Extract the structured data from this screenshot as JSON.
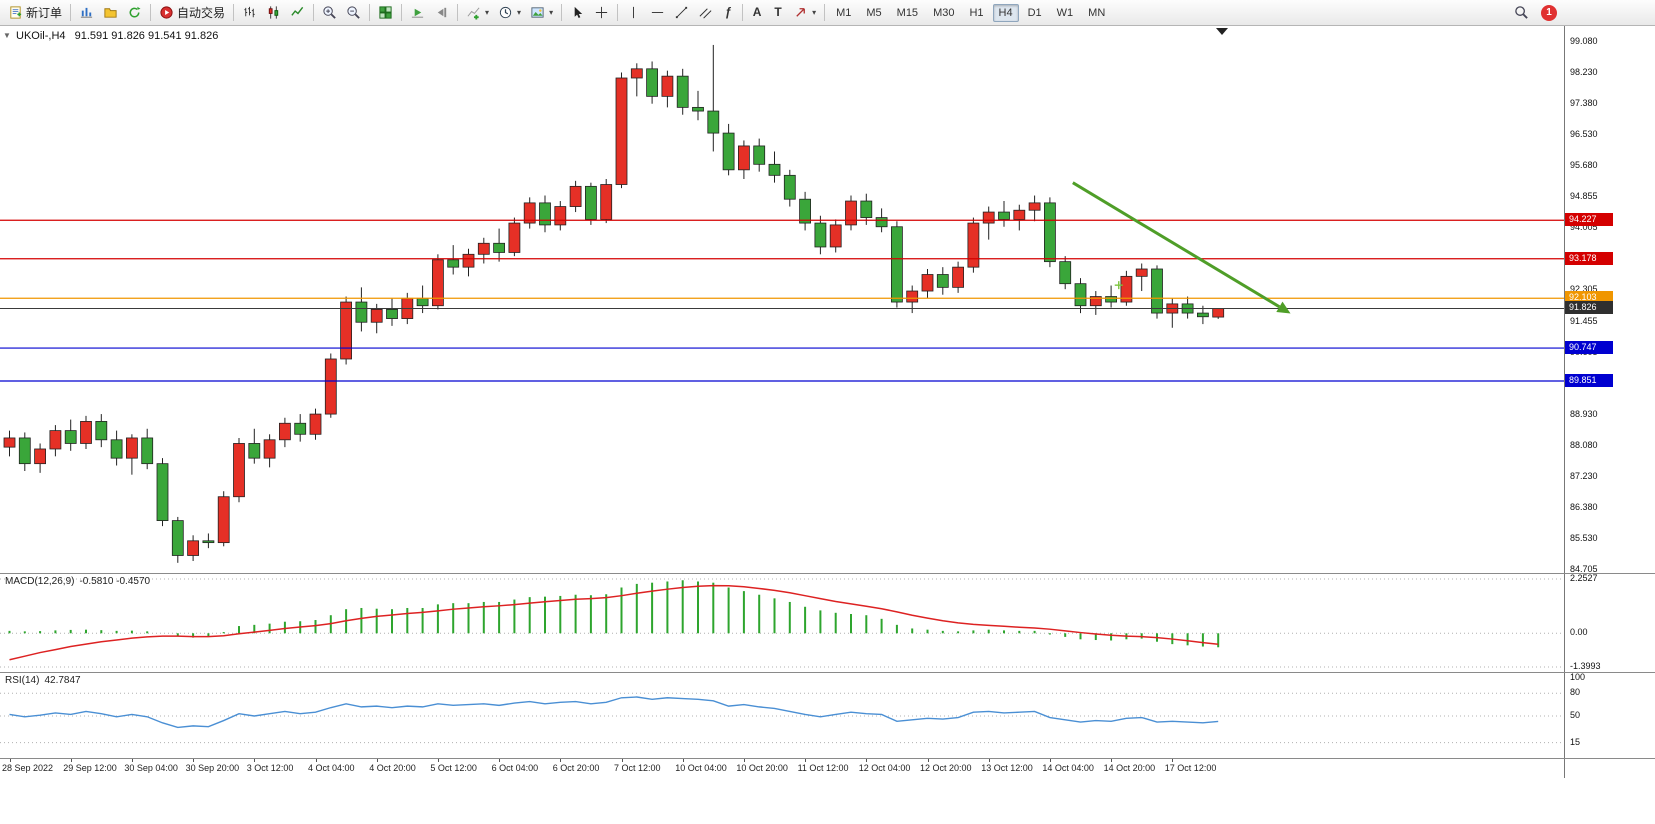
{
  "toolbar": {
    "new_order_label": "新订单",
    "autotrading_label": "自动交易",
    "timeframes": [
      "M1",
      "M5",
      "M15",
      "M30",
      "H1",
      "H4",
      "D1",
      "W1",
      "MN"
    ],
    "active_timeframe": "H4",
    "notification_count": "1",
    "icons": [
      "new-order",
      "market-watch",
      "navigator",
      "refresh",
      "autotrading",
      "bar-chart",
      "candlestick-chart",
      "line-chart",
      "zoom-in",
      "zoom-out",
      "tile-windows",
      "auto-scroll",
      "chart-shift",
      "indicators",
      "periods",
      "templates",
      "cursor",
      "crosshair",
      "vertical-line",
      "horizontal-line",
      "trendline",
      "equidistant-channel",
      "fibonacci",
      "text",
      "text-label",
      "arrows",
      "search"
    ]
  },
  "colors": {
    "bull": "#e53026",
    "bear": "#3aa63a",
    "wick": "#222222",
    "macd_hist": "#2ea52e",
    "macd_signal": "#dd2222",
    "rsi_line": "#4a8fd4",
    "trend": "#4f9e28",
    "level_red": "#d40000",
    "level_orange": "#f09600",
    "level_blue": "#0000d0",
    "current_price": "#3a3a3a"
  },
  "chart_data": {
    "type": "candlestick",
    "symbol_period": "UKOil-,H4",
    "last_ohlc_text": "91.591 91.826 91.541 91.826",
    "last_ohlc": {
      "open": 91.591,
      "high": 91.826,
      "low": 91.541,
      "close": 91.826
    },
    "price_axis": {
      "top_value": 99.08,
      "bottom_value": 84.705,
      "labels": [
        "99.080",
        "98.230",
        "97.380",
        "96.530",
        "95.680",
        "94.855",
        "94.005",
        "93.155",
        "92.305",
        "91.455",
        "90.605",
        "89.755",
        "88.930",
        "88.080",
        "87.230",
        "86.380",
        "85.530",
        "84.705"
      ]
    },
    "candles": [
      [
        88.05,
        88.5,
        87.8,
        88.3
      ],
      [
        88.3,
        88.45,
        87.4,
        87.6
      ],
      [
        87.6,
        88.15,
        87.35,
        88.0
      ],
      [
        88.0,
        88.65,
        87.8,
        88.5
      ],
      [
        88.5,
        88.8,
        87.95,
        88.15
      ],
      [
        88.15,
        88.9,
        88.0,
        88.75
      ],
      [
        88.75,
        88.95,
        88.05,
        88.25
      ],
      [
        88.25,
        88.5,
        87.55,
        87.75
      ],
      [
        87.75,
        88.4,
        87.3,
        88.3
      ],
      [
        88.3,
        88.55,
        87.45,
        87.6
      ],
      [
        87.6,
        87.75,
        85.9,
        86.05
      ],
      [
        86.05,
        86.15,
        84.9,
        85.1
      ],
      [
        85.1,
        85.65,
        84.95,
        85.5
      ],
      [
        85.5,
        85.7,
        85.3,
        85.45
      ],
      [
        85.45,
        86.85,
        85.35,
        86.7
      ],
      [
        86.7,
        88.3,
        86.55,
        88.15
      ],
      [
        88.15,
        88.55,
        87.6,
        87.75
      ],
      [
        87.75,
        88.4,
        87.5,
        88.25
      ],
      [
        88.25,
        88.85,
        88.05,
        88.7
      ],
      [
        88.7,
        88.95,
        88.2,
        88.4
      ],
      [
        88.4,
        89.1,
        88.25,
        88.95
      ],
      [
        88.95,
        90.6,
        88.85,
        90.45
      ],
      [
        90.45,
        92.15,
        90.3,
        92.0
      ],
      [
        92.0,
        92.4,
        91.2,
        91.45
      ],
      [
        91.45,
        91.95,
        91.15,
        91.8
      ],
      [
        91.8,
        92.1,
        91.35,
        91.55
      ],
      [
        91.55,
        92.25,
        91.4,
        92.1
      ],
      [
        92.1,
        92.45,
        91.7,
        91.9
      ],
      [
        91.9,
        93.3,
        91.8,
        93.15
      ],
      [
        93.15,
        93.55,
        92.75,
        92.95
      ],
      [
        92.95,
        93.45,
        92.7,
        93.3
      ],
      [
        93.3,
        93.75,
        93.05,
        93.6
      ],
      [
        93.6,
        94.0,
        93.1,
        93.35
      ],
      [
        93.35,
        94.3,
        93.25,
        94.15
      ],
      [
        94.15,
        94.85,
        94.0,
        94.7
      ],
      [
        94.7,
        94.9,
        93.9,
        94.1
      ],
      [
        94.1,
        94.75,
        93.95,
        94.6
      ],
      [
        94.6,
        95.3,
        94.45,
        95.15
      ],
      [
        95.15,
        95.25,
        94.1,
        94.25
      ],
      [
        94.25,
        95.35,
        94.15,
        95.2
      ],
      [
        95.2,
        98.25,
        95.1,
        98.1
      ],
      [
        98.1,
        98.5,
        97.6,
        98.35
      ],
      [
        98.35,
        98.55,
        97.4,
        97.6
      ],
      [
        97.6,
        98.3,
        97.3,
        98.15
      ],
      [
        98.15,
        98.35,
        97.1,
        97.3
      ],
      [
        97.3,
        97.75,
        96.95,
        97.2
      ],
      [
        97.2,
        99.0,
        96.1,
        96.6
      ],
      [
        96.6,
        96.85,
        95.45,
        95.6
      ],
      [
        95.6,
        96.4,
        95.35,
        96.25
      ],
      [
        96.25,
        96.45,
        95.55,
        95.75
      ],
      [
        95.75,
        96.1,
        95.25,
        95.45
      ],
      [
        95.45,
        95.6,
        94.6,
        94.8
      ],
      [
        94.8,
        95.0,
        93.95,
        94.15
      ],
      [
        94.15,
        94.35,
        93.3,
        93.5
      ],
      [
        93.5,
        94.25,
        93.35,
        94.1
      ],
      [
        94.1,
        94.9,
        93.95,
        94.75
      ],
      [
        94.75,
        94.95,
        94.1,
        94.3
      ],
      [
        94.3,
        94.55,
        93.9,
        94.05
      ],
      [
        94.05,
        94.2,
        91.85,
        92.0
      ],
      [
        92.0,
        92.45,
        91.7,
        92.3
      ],
      [
        92.3,
        92.9,
        92.1,
        92.75
      ],
      [
        92.75,
        92.95,
        92.2,
        92.4
      ],
      [
        92.4,
        93.1,
        92.25,
        92.95
      ],
      [
        92.95,
        94.3,
        92.8,
        94.15
      ],
      [
        94.15,
        94.6,
        93.7,
        94.45
      ],
      [
        94.45,
        94.75,
        94.05,
        94.25
      ],
      [
        94.25,
        94.65,
        93.95,
        94.5
      ],
      [
        94.5,
        94.9,
        94.2,
        94.7
      ],
      [
        94.7,
        94.85,
        92.95,
        93.1
      ],
      [
        93.1,
        93.25,
        92.35,
        92.5
      ],
      [
        92.5,
        92.65,
        91.7,
        91.9
      ],
      [
        91.9,
        92.3,
        91.65,
        92.15
      ],
      [
        92.15,
        92.45,
        91.85,
        92.0
      ],
      [
        92.0,
        92.85,
        91.9,
        92.7
      ],
      [
        92.7,
        93.05,
        92.3,
        92.9
      ],
      [
        92.9,
        93.0,
        91.55,
        91.7
      ],
      [
        91.7,
        92.1,
        91.3,
        91.95
      ],
      [
        91.95,
        92.15,
        91.55,
        91.7
      ],
      [
        91.7,
        91.9,
        91.4,
        91.6
      ],
      [
        91.591,
        91.826,
        91.541,
        91.826
      ]
    ],
    "hlines": [
      {
        "price": 94.227,
        "label": "94.227",
        "color": "#d40000",
        "badge": "#d40000"
      },
      {
        "price": 93.178,
        "label": "93.178",
        "color": "#d40000",
        "badge": "#d40000"
      },
      {
        "price": 92.103,
        "label": "92.103",
        "color": "#f09600",
        "badge": "#f09600"
      },
      {
        "price": 91.826,
        "label": "91.826",
        "color": "#3a3a3a",
        "badge": "#2f2f2f",
        "current": true
      },
      {
        "price": 90.747,
        "label": "90.747",
        "color": "#0000d0",
        "badge": "#0000d0"
      },
      {
        "price": 89.851,
        "label": "89.851",
        "color": "#0000d0",
        "badge": "#0000d0"
      }
    ],
    "trend_arrow": {
      "i1": 69.5,
      "p1": 95.25,
      "i2": 83,
      "p2": 91.87,
      "color": "#4f9e28"
    },
    "marker": {
      "i": 72.5,
      "p": 92.46,
      "color": "#7cc43e"
    },
    "time_labels": [
      [
        "28 Sep 2022",
        0
      ],
      [
        "29 Sep 12:00",
        4
      ],
      [
        "30 Sep 04:00",
        8
      ],
      [
        "30 Sep 20:00",
        12
      ],
      [
        "3 Oct 12:00",
        16
      ],
      [
        "4 Oct 04:00",
        20
      ],
      [
        "4 Oct 20:00",
        24
      ],
      [
        "5 Oct 12:00",
        28
      ],
      [
        "6 Oct 04:00",
        32
      ],
      [
        "6 Oct 20:00",
        36
      ],
      [
        "7 Oct 12:00",
        40
      ],
      [
        "10 Oct 04:00",
        44
      ],
      [
        "10 Oct 20:00",
        48
      ],
      [
        "11 Oct 12:00",
        52
      ],
      [
        "12 Oct 04:00",
        56
      ],
      [
        "12 Oct 20:00",
        60
      ],
      [
        "13 Oct 12:00",
        64
      ],
      [
        "14 Oct 04:00",
        68
      ],
      [
        "14 Oct 20:00",
        72
      ],
      [
        "17 Oct 12:00",
        76
      ]
    ],
    "macd": {
      "label": "MACD(12,26,9)",
      "values_text": "-0.5810 -0.4570",
      "main_value": -0.581,
      "signal_value": -0.457,
      "max": 2.2527,
      "min": -1.3993,
      "axis_labels": [
        "2.2527",
        "0.00",
        "-1.3993"
      ],
      "histogram": [
        0.1,
        0.08,
        0.09,
        0.12,
        0.14,
        0.15,
        0.13,
        0.1,
        0.11,
        0.08,
        0.0,
        -0.12,
        -0.18,
        -0.12,
        0.05,
        0.3,
        0.35,
        0.4,
        0.48,
        0.5,
        0.55,
        0.75,
        1.0,
        1.05,
        1.02,
        1.0,
        1.05,
        1.05,
        1.2,
        1.25,
        1.25,
        1.3,
        1.3,
        1.4,
        1.5,
        1.52,
        1.55,
        1.6,
        1.58,
        1.62,
        1.9,
        2.05,
        2.1,
        2.15,
        2.2,
        2.15,
        2.1,
        1.9,
        1.75,
        1.6,
        1.45,
        1.3,
        1.1,
        0.95,
        0.85,
        0.8,
        0.75,
        0.6,
        0.35,
        0.2,
        0.15,
        0.1,
        0.08,
        0.12,
        0.15,
        0.12,
        0.1,
        0.1,
        -0.05,
        -0.15,
        -0.25,
        -0.28,
        -0.3,
        -0.25,
        -0.22,
        -0.35,
        -0.45,
        -0.5,
        -0.55,
        -0.581
      ],
      "signal": [
        -1.1,
        -0.95,
        -0.8,
        -0.68,
        -0.55,
        -0.45,
        -0.35,
        -0.28,
        -0.2,
        -0.15,
        -0.12,
        -0.12,
        -0.14,
        -0.14,
        -0.1,
        -0.02,
        0.05,
        0.12,
        0.2,
        0.26,
        0.32,
        0.4,
        0.52,
        0.62,
        0.7,
        0.76,
        0.82,
        0.87,
        0.93,
        1.0,
        1.05,
        1.1,
        1.14,
        1.19,
        1.25,
        1.31,
        1.36,
        1.41,
        1.44,
        1.48,
        1.56,
        1.66,
        1.75,
        1.83,
        1.9,
        1.95,
        1.98,
        1.97,
        1.93,
        1.86,
        1.78,
        1.68,
        1.56,
        1.44,
        1.32,
        1.22,
        1.12,
        1.02,
        0.89,
        0.75,
        0.63,
        0.52,
        0.43,
        0.37,
        0.33,
        0.29,
        0.25,
        0.22,
        0.17,
        0.1,
        0.03,
        -0.03,
        -0.08,
        -0.12,
        -0.14,
        -0.18,
        -0.24,
        -0.31,
        -0.39,
        -0.457
      ]
    },
    "rsi": {
      "label": "RSI(14)",
      "value_text": "42.7847",
      "value": 42.7847,
      "max": 100,
      "min": 0,
      "levels": [
        80,
        50,
        15
      ],
      "axis_labels": [
        "100",
        "80",
        "50",
        "15"
      ],
      "values": [
        52,
        49,
        51,
        54,
        52,
        56,
        53,
        49,
        52,
        49,
        41,
        35,
        37,
        36,
        44,
        53,
        50,
        53,
        56,
        53,
        55,
        61,
        66,
        62,
        63,
        61,
        63,
        62,
        66,
        64,
        65,
        66,
        64,
        67,
        69,
        66,
        68,
        69,
        66,
        68,
        74,
        75,
        72,
        74,
        73,
        72,
        70,
        63,
        65,
        62,
        60,
        56,
        52,
        49,
        52,
        55,
        53,
        52,
        43,
        45,
        47,
        46,
        48,
        55,
        56,
        54,
        55,
        56,
        48,
        45,
        42,
        44,
        43,
        47,
        48,
        42,
        43,
        42,
        41,
        42.78
      ]
    }
  }
}
